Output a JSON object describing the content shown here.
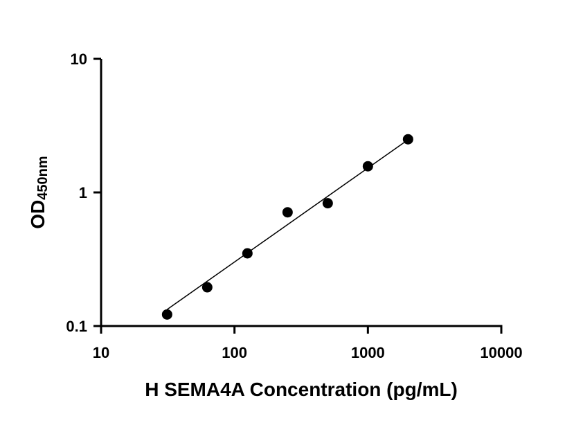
{
  "chart_data": {
    "type": "scatter",
    "title": "",
    "xlabel": "H SEMA4A Concentration (pg/mL)",
    "ylabel": "OD",
    "ylabel_subscript": "450nm",
    "xscale": "log",
    "yscale": "log",
    "xlim": [
      10,
      10000
    ],
    "ylim": [
      0.1,
      10
    ],
    "xticks": [
      10,
      100,
      1000,
      10000
    ],
    "xtick_labels": [
      "10",
      "100",
      "1000",
      "10000"
    ],
    "yticks": [
      0.1,
      1,
      10
    ],
    "ytick_labels": [
      "0.1",
      "1",
      "10"
    ],
    "grid": false,
    "legend": "none",
    "series": [
      {
        "x": [
          31.25,
          62.5,
          125,
          250,
          500,
          1000,
          2000
        ],
        "y": [
          0.122,
          0.195,
          0.35,
          0.71,
          0.83,
          1.57,
          2.5
        ],
        "marker_color": "#000000",
        "fit_line": "linear on log-log",
        "fit_range": [
          31.25,
          2000
        ],
        "fit_y": [
          0.133,
          2.48
        ]
      }
    ]
  }
}
